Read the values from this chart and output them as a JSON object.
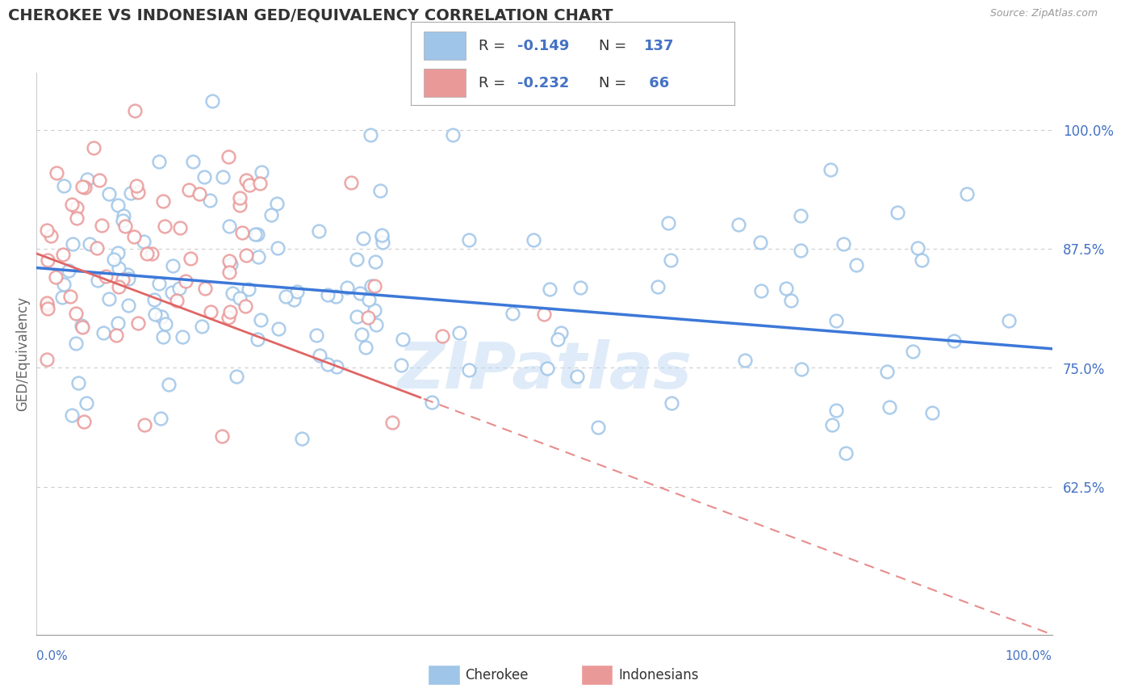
{
  "title": "CHEROKEE VS INDONESIAN GED/EQUIVALENCY CORRELATION CHART",
  "source_text": "Source: ZipAtlas.com",
  "ylabel": "GED/Equivalency",
  "yticks": [
    0.625,
    0.75,
    0.875,
    1.0
  ],
  "ytick_labels": [
    "62.5%",
    "75.0%",
    "87.5%",
    "100.0%"
  ],
  "xlim": [
    0.0,
    1.0
  ],
  "ylim": [
    0.47,
    1.06
  ],
  "cherokee_R": -0.149,
  "cherokee_N": 137,
  "indonesian_R": -0.232,
  "indonesian_N": 66,
  "cherokee_color": "#9fc5e8",
  "indonesian_color": "#ea9999",
  "cherokee_line_color": "#3c78d8",
  "indonesian_line_color": "#e06666",
  "legend_label_cherokee": "Cherokee",
  "legend_label_indonesian": "Indonesians",
  "watermark": "ZIPatlas",
  "background_color": "#ffffff",
  "grid_color": "#cccccc",
  "title_color": "#333333",
  "axis_label_color": "#4472c4",
  "text_color_dark": "#333333",
  "legend_box_border": "#aaaaaa"
}
